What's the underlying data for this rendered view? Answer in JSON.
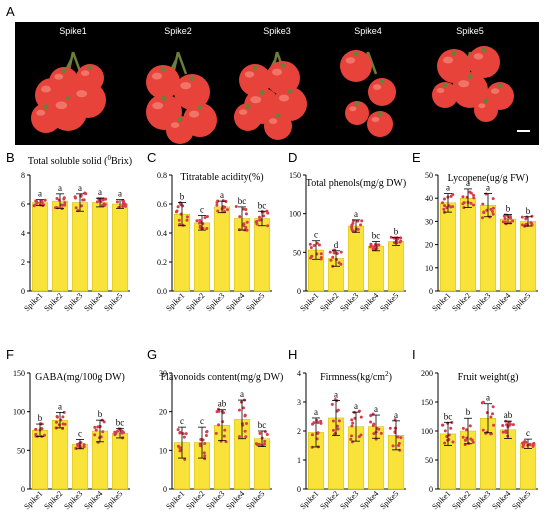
{
  "figure": {
    "panel_a_letter": "A",
    "photo_labels": [
      "Spike1",
      "Spike2",
      "Spike3",
      "Spike4",
      "Spike5"
    ]
  },
  "colors": {
    "bar": "#f9e33a",
    "bar_stroke": "#cfb800",
    "point": "#d63c4c",
    "photo_bg": "#000000",
    "tomato": "#e8433a",
    "tomato_highlight": "#f48a7c",
    "stem": "#6b7f3a"
  },
  "chart_data": [
    {
      "letter": "B",
      "type": "bar",
      "title": "Total soluble solid (",
      "title_sup": "0",
      "title_after": "Brix)",
      "categories": [
        "Spike1",
        "Spike2",
        "Spike3",
        "Spike4",
        "Spike5"
      ],
      "values": [
        6.1,
        6.2,
        6.1,
        6.1,
        6.0
      ],
      "errors": [
        0.2,
        0.5,
        0.6,
        0.3,
        0.3
      ],
      "letters": [
        "a",
        "a",
        "a",
        "a",
        "a"
      ],
      "ylim": [
        0,
        8
      ],
      "yticks": [
        0,
        2,
        4,
        6,
        8
      ]
    },
    {
      "letter": "C",
      "type": "bar",
      "title": "Titratable acidity(%)",
      "categories": [
        "Spike1",
        "Spike2",
        "Spike3",
        "Spike4",
        "Spike5"
      ],
      "values": [
        0.53,
        0.47,
        0.58,
        0.5,
        0.5
      ],
      "errors": [
        0.08,
        0.05,
        0.04,
        0.08,
        0.05
      ],
      "letters": [
        "b",
        "c",
        "a",
        "bc",
        "bc"
      ],
      "ylim": [
        0,
        0.8
      ],
      "yticks": [
        0.0,
        0.2,
        0.4,
        0.6,
        0.8
      ]
    },
    {
      "letter": "D",
      "type": "bar",
      "title": "Total phenols(mg/g DW)",
      "categories": [
        "Spike1",
        "Spike2",
        "Spike3",
        "Spike4",
        "Spike5"
      ],
      "values": [
        53,
        42,
        84,
        58,
        64
      ],
      "errors": [
        12,
        10,
        8,
        6,
        5
      ],
      "letters": [
        "c",
        "d",
        "a",
        "bc",
        "b"
      ],
      "ylim": [
        0,
        150
      ],
      "yticks": [
        0,
        50,
        100,
        150
      ]
    },
    {
      "letter": "E",
      "type": "bar",
      "title": "Lycopene(ug/g FW)",
      "categories": [
        "Spike1",
        "Spike2",
        "Spike3",
        "Spike4",
        "Spike5"
      ],
      "values": [
        38,
        40,
        37,
        31,
        30
      ],
      "errors": [
        4,
        4,
        5,
        2,
        2
      ],
      "letters": [
        "a",
        "a",
        "a",
        "b",
        "b"
      ],
      "ylim": [
        0,
        50
      ],
      "yticks": [
        0,
        10,
        20,
        30,
        40,
        50
      ]
    },
    {
      "letter": "F",
      "type": "bar",
      "title": "GABA(mg/100g DW)",
      "categories": [
        "Spike1",
        "Spike2",
        "Spike3",
        "Spike4",
        "Spike5"
      ],
      "values": [
        76,
        89,
        58,
        75,
        72
      ],
      "errors": [
        8,
        10,
        6,
        14,
        6
      ],
      "letters": [
        "b",
        "a",
        "c",
        "b",
        "bc"
      ],
      "ylim": [
        0,
        150
      ],
      "yticks": [
        0,
        50,
        100,
        150
      ]
    },
    {
      "letter": "G",
      "type": "bar",
      "title": "Flavonoids content(mg/g DW)",
      "categories": [
        "Spike1",
        "Spike2",
        "Spike3",
        "Spike4",
        "Spike5"
      ],
      "values": [
        12,
        12,
        16.5,
        18,
        13
      ],
      "errors": [
        4,
        4,
        4,
        5,
        2
      ],
      "letters": [
        "c",
        "c",
        "ab",
        "a",
        "bc"
      ],
      "ylim": [
        0,
        30
      ],
      "yticks": [
        0,
        10,
        20,
        30
      ]
    },
    {
      "letter": "H",
      "type": "bar",
      "title": "Firmness(kg/cm",
      "title_sup": "2",
      "title_after": ")",
      "categories": [
        "Spike1",
        "Spike2",
        "Spike3",
        "Spike4",
        "Spike5"
      ],
      "values": [
        1.95,
        2.45,
        2.15,
        2.15,
        1.85
      ],
      "errors": [
        0.5,
        0.6,
        0.5,
        0.4,
        0.5
      ],
      "letters": [
        "a",
        "a",
        "a",
        "a",
        "a"
      ],
      "ylim": [
        0,
        4
      ],
      "yticks": [
        0,
        1,
        2,
        3,
        4
      ]
    },
    {
      "letter": "I",
      "type": "bar",
      "title": "Fruit weight(g)",
      "categories": [
        "Spike1",
        "Spike2",
        "Spike3",
        "Spike4",
        "Spike5"
      ],
      "values": [
        95,
        100,
        122,
        102,
        78
      ],
      "errors": [
        20,
        22,
        25,
        15,
        8
      ],
      "letters": [
        "bc",
        "b",
        "a",
        "ab",
        "c"
      ],
      "ylim": [
        0,
        200
      ],
      "yticks": [
        0,
        50,
        100,
        150,
        200
      ]
    }
  ]
}
